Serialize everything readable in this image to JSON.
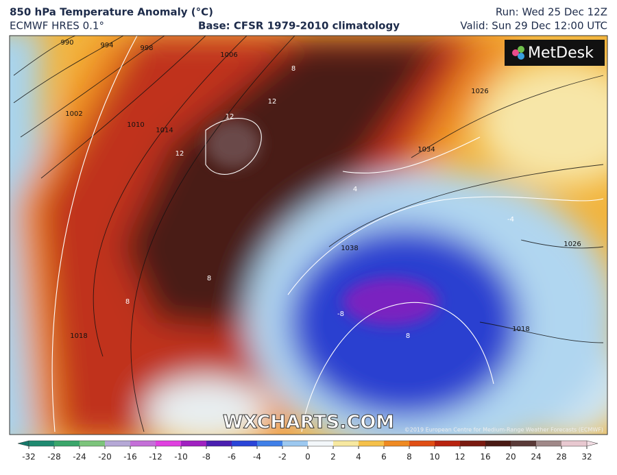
{
  "header": {
    "title": "850 hPa Temperature Anomaly (°C)",
    "model": "ECMWF HRES 0.1°",
    "base": "Base: CFSR 1979-2010 climatology",
    "run": "Run: Wed 25 Dec 12Z",
    "valid": "Valid: Sun 29 Dec 12:00 UTC"
  },
  "logo": "MetDesk",
  "watermark": "WXCHARTS.COM",
  "copyright": "©2019 European Centre for Medium-Range Weather Forecasts (ECMWF)",
  "isobar_labels": [
    990,
    994,
    998,
    1002,
    1006,
    1010,
    1014,
    1018,
    1026,
    1034,
    1038,
    1026,
    1018
  ],
  "anomaly_labels": [
    12,
    12,
    12,
    8,
    8,
    8,
    8,
    -8,
    -4,
    4
  ],
  "colorbar": {
    "ticks": [
      -32,
      -28,
      -24,
      -20,
      -16,
      -12,
      -10,
      -8,
      -6,
      -4,
      -2,
      0,
      2,
      4,
      6,
      8,
      10,
      12,
      16,
      20,
      24,
      28,
      32
    ],
    "colors": [
      "#1f8a70",
      "#3aa66a",
      "#7cc47b",
      "#b5a8d6",
      "#c46fd8",
      "#e040e0",
      "#a020c0",
      "#4b1fb0",
      "#2a45d8",
      "#3f7fe8",
      "#9cc8f0",
      "#f3f7fa",
      "#f7e8a0",
      "#f5c04a",
      "#ef8a22",
      "#e04e14",
      "#b8230f",
      "#7a1a10",
      "#4a1a14",
      "#5a3a38",
      "#a08888",
      "#e8c8d0"
    ],
    "under_color": "#16786a",
    "over_color": "#f2dde4"
  }
}
